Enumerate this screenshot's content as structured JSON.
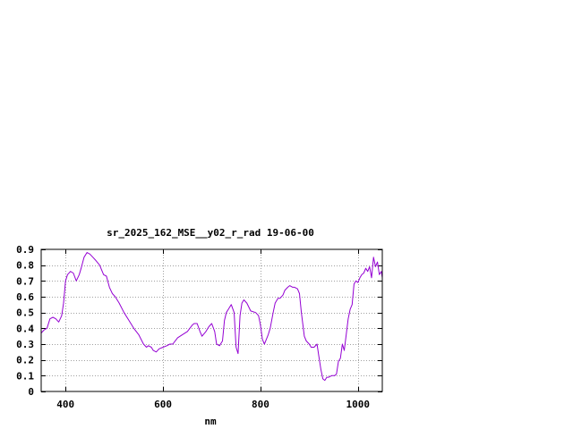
{
  "chart_data": {
    "type": "line",
    "title": "sr_2025_162_MSE__y02_r_rad 19-06-00",
    "xlabel": "nm",
    "ylabel": "",
    "xlim": [
      350,
      1050
    ],
    "ylim": [
      0,
      0.9
    ],
    "x_ticks": [
      400,
      600,
      800,
      1000
    ],
    "y_ticks": [
      0,
      0.1,
      0.2,
      0.3,
      0.4,
      0.5,
      0.6,
      0.7,
      0.8,
      0.9
    ],
    "grid": true,
    "line_color": "#9400d3",
    "series": [
      {
        "x": [
          350,
          356,
          362,
          368,
          374,
          380,
          386,
          392,
          396,
          400,
          404,
          410,
          416,
          422,
          428,
          432,
          438,
          444,
          450,
          456,
          462,
          470,
          478,
          484,
          490,
          496,
          502,
          510,
          520,
          530,
          540,
          550,
          560,
          566,
          570,
          576,
          580,
          586,
          592,
          600,
          608,
          614,
          620,
          630,
          640,
          650,
          660,
          664,
          670,
          676,
          680,
          688,
          694,
          700,
          706,
          710,
          716,
          722,
          726,
          730,
          736,
          740,
          746,
          750,
          754,
          758,
          762,
          766,
          772,
          780,
          790,
          796,
          800,
          804,
          808,
          812,
          816,
          820,
          826,
          830,
          836,
          840,
          846,
          850,
          856,
          860,
          866,
          870,
          876,
          880,
          884,
          890,
          894,
          900,
          904,
          910,
          916,
          920,
          924,
          928,
          932,
          936,
          940,
          946,
          952,
          956,
          960,
          964,
          968,
          972,
          976,
          980,
          984,
          988,
          992,
          996,
          1000,
          1004,
          1008,
          1012,
          1016,
          1020,
          1024,
          1028,
          1032,
          1036,
          1040,
          1044,
          1048,
          1050
        ],
        "y": [
          0.37,
          0.39,
          0.4,
          0.46,
          0.47,
          0.46,
          0.44,
          0.48,
          0.56,
          0.7,
          0.74,
          0.76,
          0.75,
          0.7,
          0.74,
          0.78,
          0.85,
          0.88,
          0.87,
          0.85,
          0.83,
          0.8,
          0.74,
          0.73,
          0.66,
          0.62,
          0.6,
          0.56,
          0.5,
          0.45,
          0.4,
          0.36,
          0.3,
          0.28,
          0.29,
          0.28,
          0.26,
          0.25,
          0.27,
          0.28,
          0.29,
          0.3,
          0.3,
          0.34,
          0.36,
          0.38,
          0.42,
          0.43,
          0.43,
          0.38,
          0.35,
          0.38,
          0.41,
          0.43,
          0.38,
          0.3,
          0.29,
          0.32,
          0.45,
          0.5,
          0.53,
          0.55,
          0.5,
          0.28,
          0.24,
          0.48,
          0.56,
          0.58,
          0.56,
          0.51,
          0.5,
          0.48,
          0.42,
          0.33,
          0.3,
          0.33,
          0.36,
          0.4,
          0.5,
          0.56,
          0.59,
          0.59,
          0.61,
          0.64,
          0.66,
          0.67,
          0.66,
          0.66,
          0.65,
          0.62,
          0.5,
          0.35,
          0.32,
          0.3,
          0.28,
          0.28,
          0.3,
          0.22,
          0.14,
          0.08,
          0.07,
          0.09,
          0.09,
          0.1,
          0.1,
          0.11,
          0.19,
          0.21,
          0.3,
          0.26,
          0.36,
          0.46,
          0.52,
          0.55,
          0.68,
          0.7,
          0.69,
          0.72,
          0.74,
          0.75,
          0.78,
          0.76,
          0.79,
          0.72,
          0.85,
          0.79,
          0.82,
          0.74,
          0.76,
          0.72
        ]
      }
    ]
  }
}
